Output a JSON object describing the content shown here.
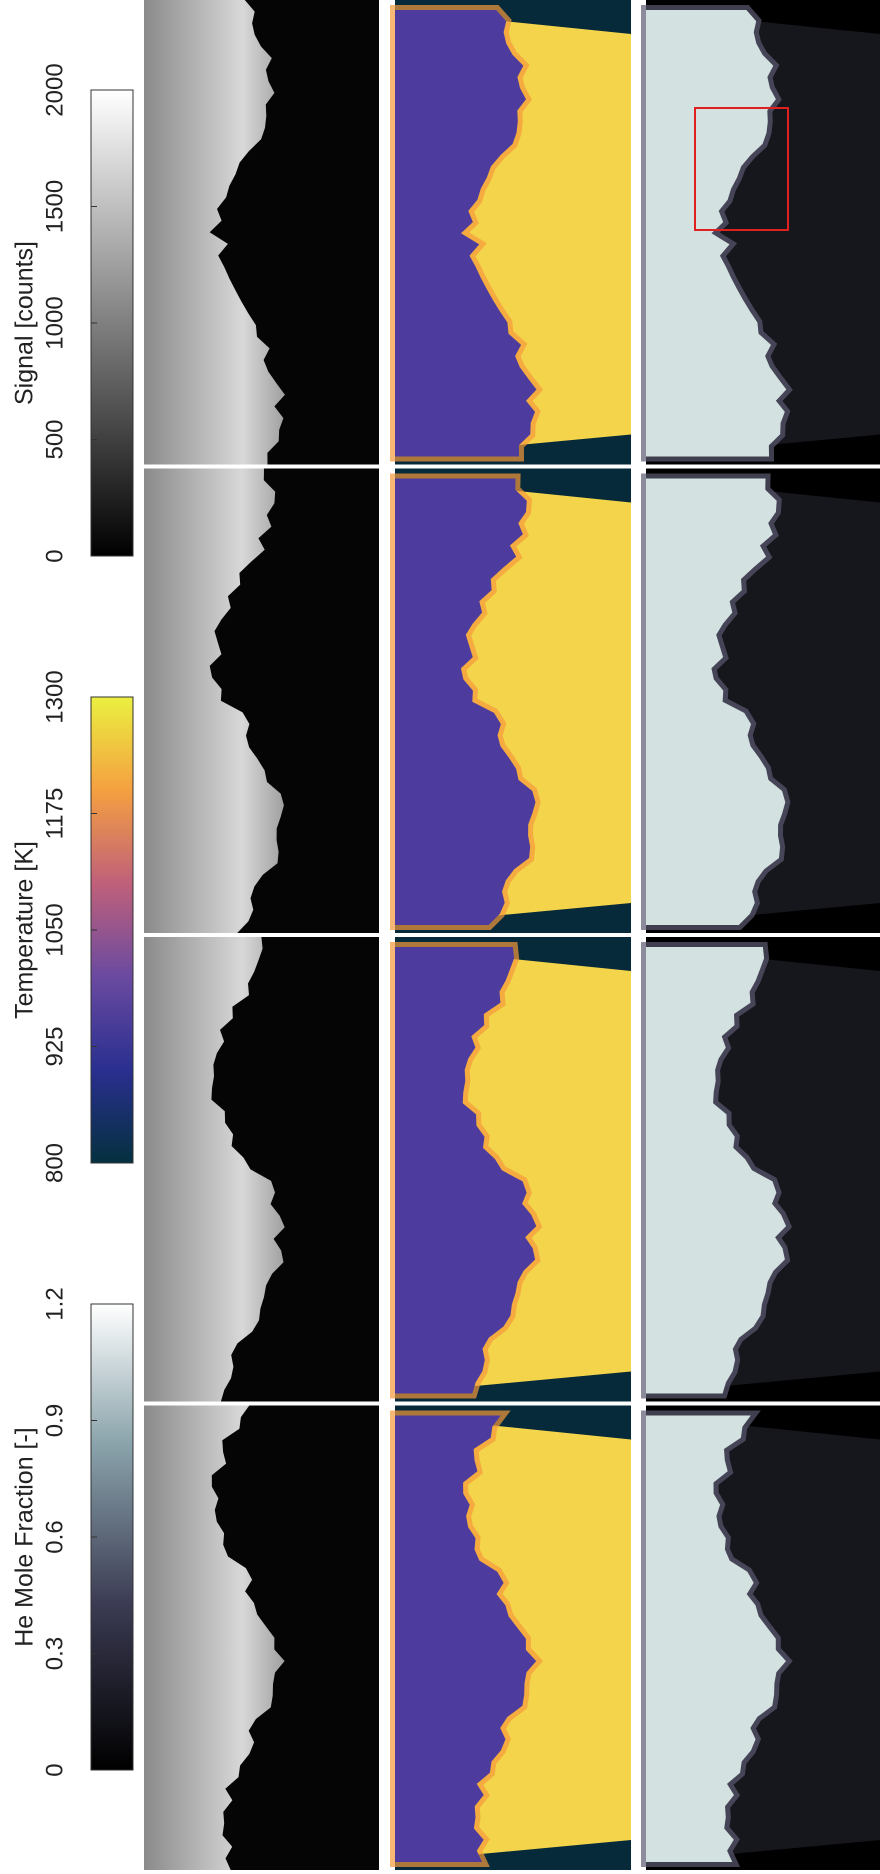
{
  "colorbars": [
    {
      "title": "Signal [counts]",
      "lim": [
        0,
        2000
      ],
      "ticks": [
        0,
        500,
        1000,
        1500,
        2000
      ]
    },
    {
      "title": "Temperature [K]",
      "lim": [
        800,
        1300
      ],
      "ticks": [
        800,
        925,
        1050,
        1175,
        1300
      ]
    },
    {
      "title": "He Mole Fraction [-]",
      "lim": [
        0,
        1.2
      ],
      "ticks": [
        0,
        0.3,
        0.6,
        0.9,
        1.2
      ]
    }
  ]
}
